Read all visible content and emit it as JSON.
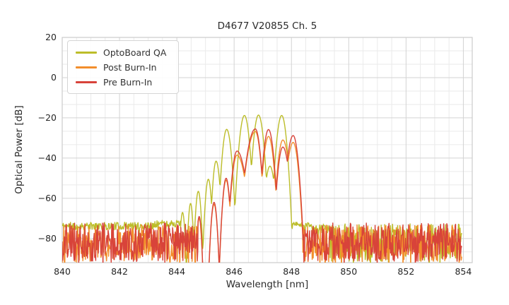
{
  "chart_data": {
    "type": "line",
    "title": "D4677 V20855 Ch. 5",
    "xlabel": "Wavelength [nm]",
    "ylabel": "Optical Power [dB]",
    "xlim": [
      840,
      854.31
    ],
    "ylim": [
      -92,
      20
    ],
    "x_ticks": {
      "values": [
        840,
        842,
        844,
        846,
        848,
        850,
        852,
        854
      ],
      "labels": [
        "840",
        "842",
        "844",
        "846",
        "848",
        "850",
        "852",
        "854"
      ]
    },
    "y_ticks": {
      "values": [
        20,
        0,
        -20,
        -40,
        -60,
        -80
      ],
      "labels": [
        "20",
        "0",
        "−20",
        "−40",
        "−60",
        "−80"
      ]
    },
    "grid": {
      "major": true,
      "minor": true,
      "x_minor_step": 0.5,
      "y_minor_step": 6.6667,
      "major_color": "#d3d3d3",
      "minor_color": "#eaeaea",
      "spine_color": "#cccccc"
    },
    "legend": {
      "location": "upper left",
      "entries": [
        "OptoBoard QA",
        "Post Burn-In",
        "Pre Burn-In"
      ]
    },
    "series": [
      {
        "name": "OptoBoard QA",
        "color": "#bcbd29",
        "noise_floor_db": -74,
        "modes": [
          [
            844.2,
            -67.0,
            1600,
            1600
          ],
          [
            844.48,
            -62.5,
            1600,
            1600
          ],
          [
            844.75,
            -56.5,
            1200,
            1200
          ],
          [
            845.1,
            -50.5,
            1000,
            1000
          ],
          [
            845.37,
            -41.5,
            900,
            700
          ],
          [
            845.74,
            -25.7,
            550,
            480
          ],
          [
            846.36,
            -18.8,
            420,
            440
          ],
          [
            846.85,
            -18.6,
            440,
            420
          ],
          [
            847.25,
            -44.0,
            420,
            420
          ],
          [
            847.66,
            -18.8,
            420,
            450
          ]
        ],
        "segments": [
          {
            "type": "noise",
            "from": 840.0,
            "to": 843.2,
            "level": -73.8,
            "amp": 1.9,
            "dip_chance": 0.06,
            "dip_depth": 5
          },
          {
            "type": "noise",
            "from": 843.2,
            "to": 844.13,
            "level": -72.6,
            "amp": 1.7,
            "dip_chance": 0.05,
            "dip_depth": 4
          },
          {
            "type": "modes",
            "from": 844.13,
            "to": 848.01
          },
          {
            "type": "noise",
            "from": 848.01,
            "to": 848.7,
            "level": -73.0,
            "amp": 1.2,
            "dip_chance": 0.04,
            "dip_depth": 3
          },
          {
            "type": "noise",
            "from": 848.7,
            "to": 849.35,
            "level": -74.8,
            "amp": 2.2,
            "dip_chance": 0.1,
            "dip_depth": 5
          },
          {
            "type": "noise",
            "from": 849.35,
            "to": 853.95,
            "level": -82.0,
            "amp": 9.3,
            "dip_chance": 0.1,
            "dip_depth": 5
          }
        ]
      },
      {
        "name": "Post Burn-In",
        "color": "#f28e2c",
        "noise_floor_db": -82,
        "modes": [
          [
            844.78,
            -70.0,
            1600,
            1600
          ],
          [
            845.3,
            -63.0,
            1000,
            1000
          ],
          [
            845.72,
            -51.0,
            800,
            800
          ],
          [
            846.1,
            -38.5,
            420,
            160
          ],
          [
            846.74,
            -26.8,
            160,
            420
          ],
          [
            847.2,
            -29.2,
            420,
            420
          ],
          [
            847.7,
            -31.0,
            420,
            300
          ],
          [
            848.06,
            -32.2,
            300,
            420
          ]
        ],
        "segments": [
          {
            "type": "noise",
            "from": 840.0,
            "to": 844.72,
            "level": -82.3,
            "amp": 9.2,
            "dip_chance": 0.12,
            "dip_depth": 6
          },
          {
            "type": "modes",
            "from": 844.72,
            "to": 848.4
          },
          {
            "type": "noise",
            "from": 848.4,
            "to": 853.95,
            "level": -82.3,
            "amp": 9.2,
            "dip_chance": 0.12,
            "dip_depth": 6
          }
        ]
      },
      {
        "name": "Pre Burn-In",
        "color": "#d8433a",
        "noise_floor_db": -82,
        "modes": [
          [
            844.78,
            -69.0,
            1600,
            1600
          ],
          [
            845.3,
            -62.0,
            1000,
            1000
          ],
          [
            845.72,
            -50.0,
            800,
            800
          ],
          [
            846.1,
            -36.5,
            420,
            160
          ],
          [
            846.74,
            -25.5,
            160,
            420
          ],
          [
            847.2,
            -25.8,
            420,
            420
          ],
          [
            847.7,
            -34.5,
            420,
            300
          ],
          [
            848.06,
            -28.8,
            300,
            420
          ]
        ],
        "segments": [
          {
            "type": "noise",
            "from": 840.0,
            "to": 844.74,
            "level": -81.8,
            "amp": 9.6,
            "dip_chance": 0.12,
            "dip_depth": 6
          },
          {
            "type": "modes",
            "from": 844.74,
            "to": 848.4
          },
          {
            "type": "noise",
            "from": 848.4,
            "to": 853.95,
            "level": -81.8,
            "amp": 9.6,
            "dip_chance": 0.12,
            "dip_depth": 6
          }
        ]
      }
    ]
  }
}
